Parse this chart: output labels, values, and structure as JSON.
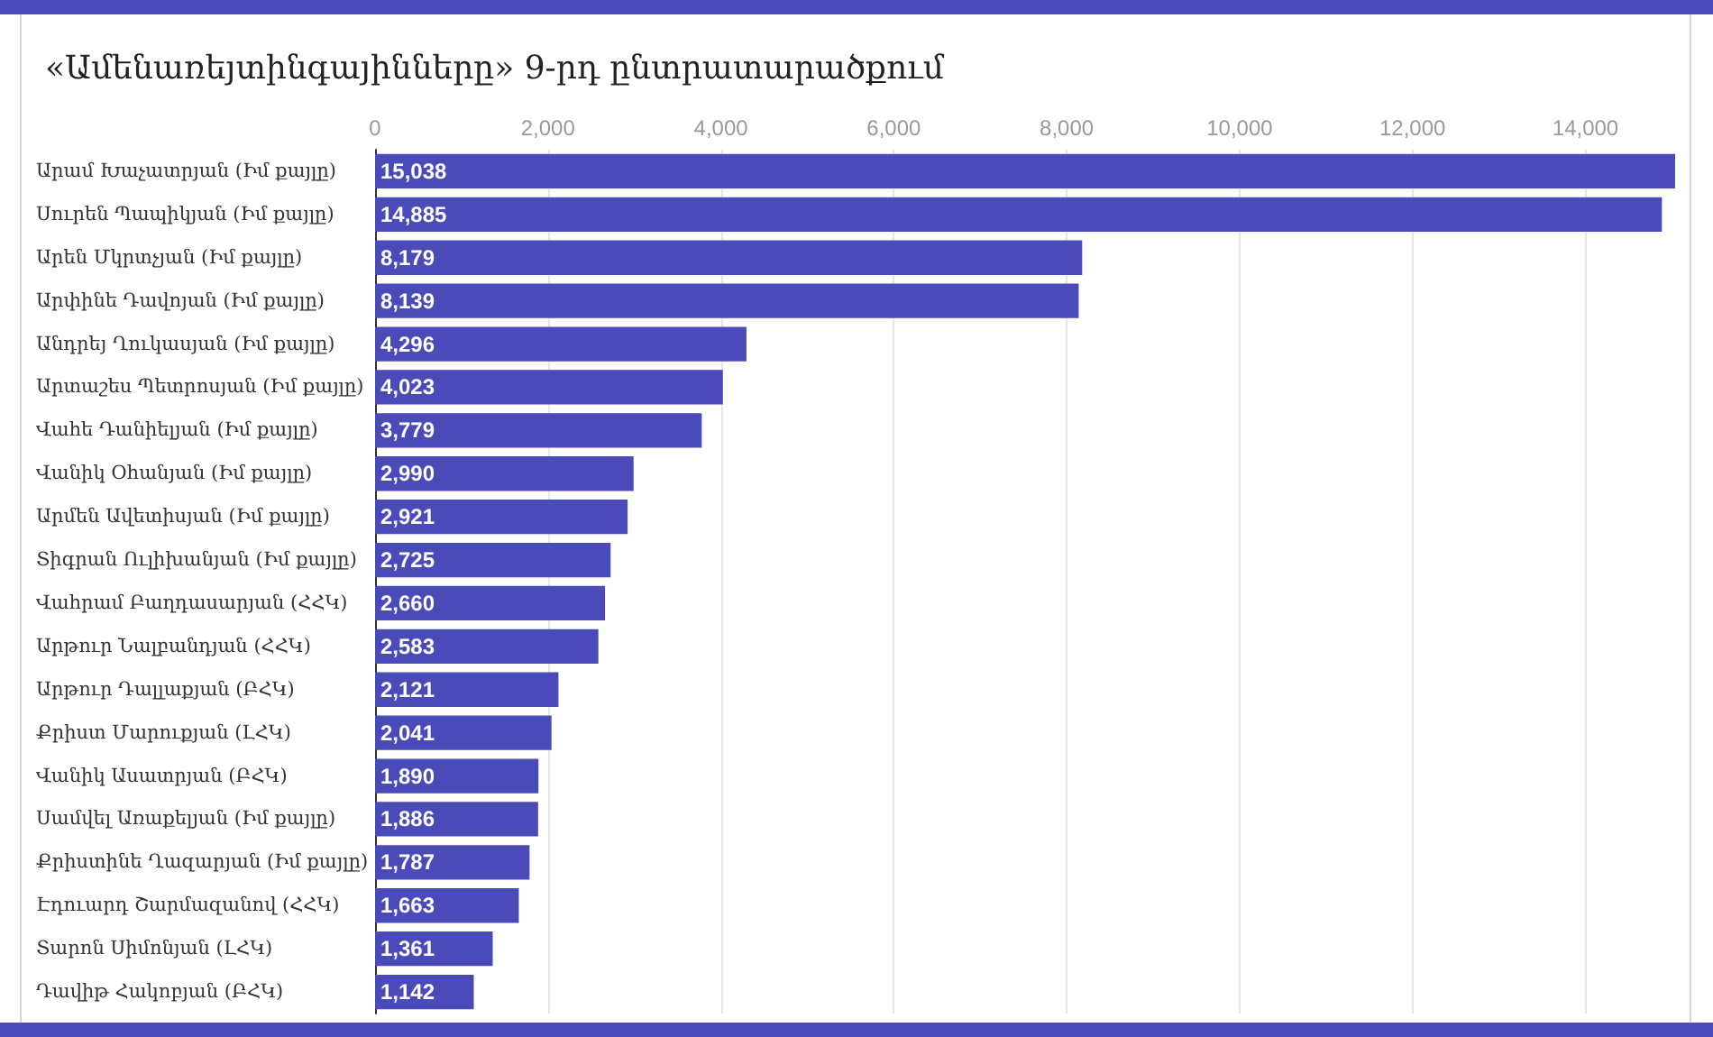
{
  "chart_data": {
    "type": "bar",
    "orientation": "horizontal",
    "title": "«Ամենառեյտինգայինները» 9-րդ ընտրատարածքում",
    "categories": [
      "Արամ Խաչատրյան (Իմ քայլը)",
      "Սուրեն Պապիկյան (Իմ քայլը)",
      "Արեն Մկրտչյան (Իմ քայլը)",
      "Արփինե Դավոյան (Իմ քայլը)",
      "Անդրեյ Ղուկասյան (Իմ քայլը)",
      "Արտաշես Պետրոսյան (Իմ քայլը)",
      "Վահե Դանիելյան (Իմ քայլը)",
      "Վանիկ Օհանյան (Իմ քայլը)",
      "Արմեն Ավետիսյան (Իմ քայլը)",
      "Տիգրան Ուլիխանյան (Իմ քայլը)",
      "Վահրամ Բաղդասարյան (ՀՀԿ)",
      "Արթուր Նալբանդյան (ՀՀԿ)",
      "Արթուր Դալլաքյան (ԲՀԿ)",
      "Քրիստ Մարուքյան (ԼՀԿ)",
      "Վանիկ Ասատրյան (ԲՀԿ)",
      "Սամվել Առաքելյան (Իմ քայլը)",
      "Քրիստինե Ղազարյան (Իմ քայլը)",
      "Էդուարդ Շարմազանով (ՀՀԿ)",
      "Տարոն Սիմոնյան (ԼՀԿ)",
      "Դավիթ Հակոբյան (ԲՀԿ)"
    ],
    "values": [
      15038,
      14885,
      8179,
      8139,
      4296,
      4023,
      3779,
      2990,
      2921,
      2725,
      2660,
      2583,
      2121,
      2041,
      1890,
      1886,
      1787,
      1663,
      1361,
      1142
    ],
    "value_labels": [
      "15,038",
      "14,885",
      "8,179",
      "8,139",
      "4,296",
      "4,023",
      "3,779",
      "2,990",
      "2,921",
      "2,725",
      "2,660",
      "2,583",
      "2,121",
      "2,041",
      "1,890",
      "1,886",
      "1,787",
      "1,663",
      "1,361",
      "1,142"
    ],
    "color": "#4a4ab9",
    "xlim": [
      0,
      15038
    ],
    "xticks": [
      0,
      {
        "value": 2000,
        "label": "2,000"
      },
      {
        "value": 4000,
        "label": "4,000"
      },
      {
        "value": 6000,
        "label": "6,000"
      },
      {
        "value": 8000,
        "label": "8,000"
      },
      {
        "value": 10000,
        "label": "10,000"
      },
      {
        "value": 12000,
        "label": "12,000"
      },
      {
        "value": 14000,
        "label": "14,000"
      }
    ],
    "grid": "x"
  }
}
